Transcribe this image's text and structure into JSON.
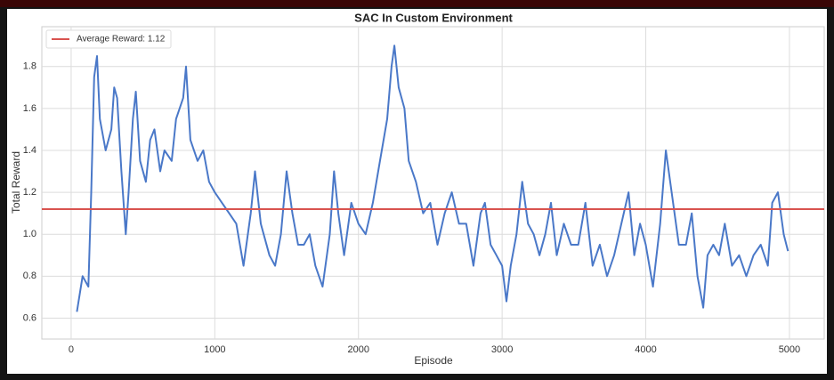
{
  "chart_data": {
    "type": "line",
    "title": "SAC In Custom Environment",
    "x_label": "Episode",
    "y_label": "Total Reward",
    "x": [
      40,
      80,
      120,
      140,
      160,
      180,
      200,
      240,
      280,
      300,
      320,
      350,
      380,
      400,
      430,
      450,
      480,
      520,
      550,
      580,
      620,
      650,
      700,
      730,
      780,
      800,
      830,
      880,
      920,
      960,
      1000,
      1050,
      1100,
      1150,
      1200,
      1250,
      1280,
      1320,
      1380,
      1420,
      1460,
      1500,
      1540,
      1580,
      1620,
      1660,
      1700,
      1750,
      1800,
      1830,
      1860,
      1900,
      1950,
      2000,
      2050,
      2100,
      2150,
      2200,
      2230,
      2250,
      2280,
      2320,
      2350,
      2400,
      2450,
      2500,
      2550,
      2600,
      2650,
      2700,
      2750,
      2800,
      2850,
      2880,
      2920,
      2960,
      3000,
      3030,
      3060,
      3100,
      3140,
      3180,
      3220,
      3260,
      3300,
      3340,
      3380,
      3430,
      3480,
      3530,
      3580,
      3630,
      3680,
      3730,
      3780,
      3830,
      3880,
      3920,
      3960,
      4000,
      4050,
      4100,
      4140,
      4180,
      4230,
      4280,
      4320,
      4360,
      4400,
      4430,
      4470,
      4510,
      4550,
      4600,
      4650,
      4700,
      4750,
      4800,
      4850,
      4880,
      4920,
      4960,
      4990
    ],
    "series": [
      {
        "name": "Total Reward",
        "color": "#4a78c8",
        "values": [
          0.63,
          0.8,
          0.75,
          1.2,
          1.75,
          1.85,
          1.55,
          1.4,
          1.5,
          1.7,
          1.65,
          1.3,
          1.0,
          1.2,
          1.55,
          1.68,
          1.35,
          1.25,
          1.45,
          1.5,
          1.3,
          1.4,
          1.35,
          1.55,
          1.65,
          1.8,
          1.45,
          1.35,
          1.4,
          1.25,
          1.2,
          1.15,
          1.1,
          1.05,
          0.85,
          1.1,
          1.3,
          1.05,
          0.9,
          0.85,
          1.0,
          1.3,
          1.1,
          0.95,
          0.95,
          1.0,
          0.85,
          0.75,
          1.0,
          1.3,
          1.1,
          0.9,
          1.15,
          1.05,
          1.0,
          1.15,
          1.35,
          1.55,
          1.8,
          1.9,
          1.7,
          1.6,
          1.35,
          1.25,
          1.1,
          1.15,
          0.95,
          1.1,
          1.2,
          1.05,
          1.05,
          0.85,
          1.1,
          1.15,
          0.95,
          0.9,
          0.85,
          0.68,
          0.85,
          1.0,
          1.25,
          1.05,
          1.0,
          0.9,
          1.0,
          1.15,
          0.9,
          1.05,
          0.95,
          0.95,
          1.15,
          0.85,
          0.95,
          0.8,
          0.9,
          1.05,
          1.2,
          0.9,
          1.05,
          0.95,
          0.75,
          1.05,
          1.4,
          1.2,
          0.95,
          0.95,
          1.1,
          0.8,
          0.65,
          0.9,
          0.95,
          0.9,
          1.05,
          0.85,
          0.9,
          0.8,
          0.9,
          0.95,
          0.85,
          1.15,
          1.2,
          1.0,
          0.92
        ]
      }
    ],
    "hline": {
      "name": "Average Reward: 1.12",
      "value": 1.12,
      "color": "#d9534f"
    },
    "xlim": [
      -204,
      5242
    ],
    "ylim": [
      0.5,
      1.99
    ],
    "xticks": [
      0,
      1000,
      2000,
      3000,
      4000,
      5000
    ],
    "yticks": [
      0.6,
      0.8,
      {
        "value": 1,
        "label": "1.0"
      },
      1.2,
      1.4,
      1.6,
      1.8
    ],
    "grid": true,
    "legend": "upper left"
  }
}
